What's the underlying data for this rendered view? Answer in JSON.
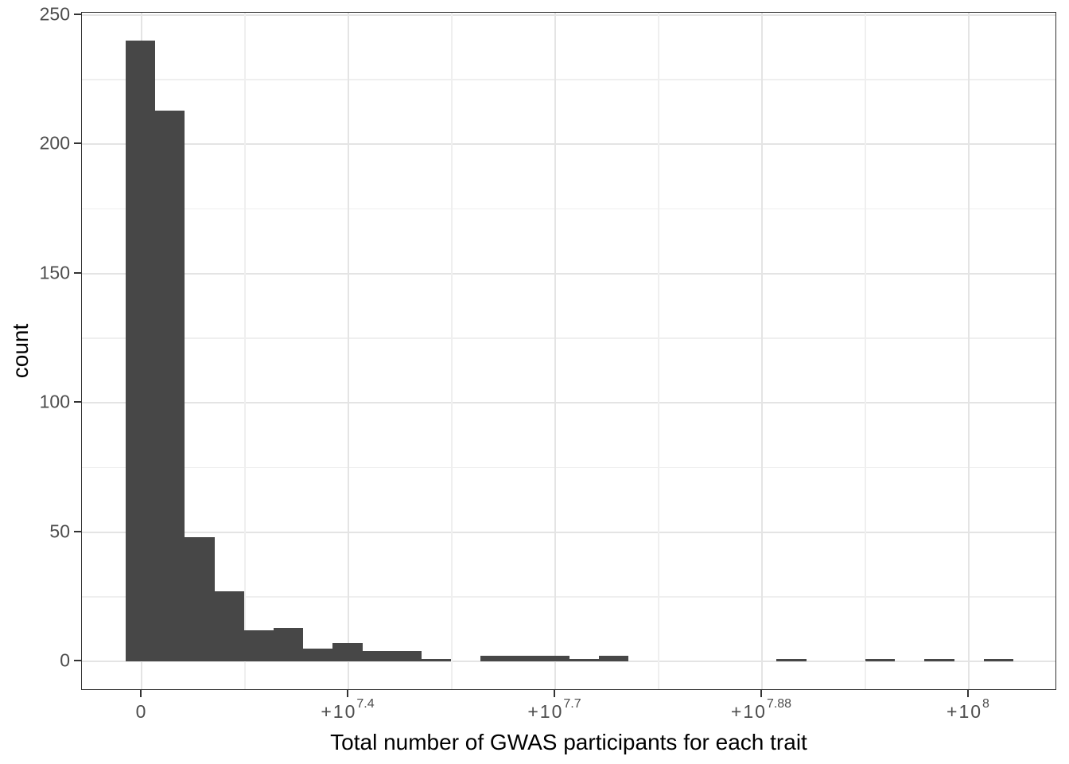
{
  "chart_data": {
    "type": "bar",
    "subtype": "histogram",
    "title": "",
    "xlabel": "Total number of GWAS participants for each trait",
    "ylabel": "count",
    "n_bins": 30,
    "bin_counts": [
      240,
      213,
      48,
      27,
      12,
      13,
      5,
      7,
      4,
      4,
      1,
      0,
      2,
      2,
      2,
      1,
      2,
      0,
      0,
      0,
      0,
      0,
      1,
      0,
      0,
      1,
      0,
      1,
      0,
      1
    ],
    "y_ticks": [
      0,
      50,
      100,
      150,
      200,
      250
    ],
    "y_minor_ticks": [
      25,
      75,
      125,
      175,
      225
    ],
    "ylim": [
      0,
      250
    ],
    "x_tick_labels": [
      {
        "base": "0",
        "exponent": ""
      },
      {
        "base": "+10",
        "exponent": "7.4"
      },
      {
        "base": "+10",
        "exponent": "7.7"
      },
      {
        "base": "+10",
        "exponent": "7.88"
      },
      {
        "base": "+10",
        "exponent": "8"
      }
    ],
    "grid": "major-and-minor",
    "legend": "none",
    "style": {
      "bar_color": "#474747",
      "grid_major_color": "#e4e4e4",
      "grid_minor_color": "#efefef",
      "panel_border_color": "#333333",
      "tick_color": "#333333",
      "tick_label_color": "#4d4d4d",
      "axis_title_color": "#000000",
      "background": "#ffffff"
    }
  }
}
